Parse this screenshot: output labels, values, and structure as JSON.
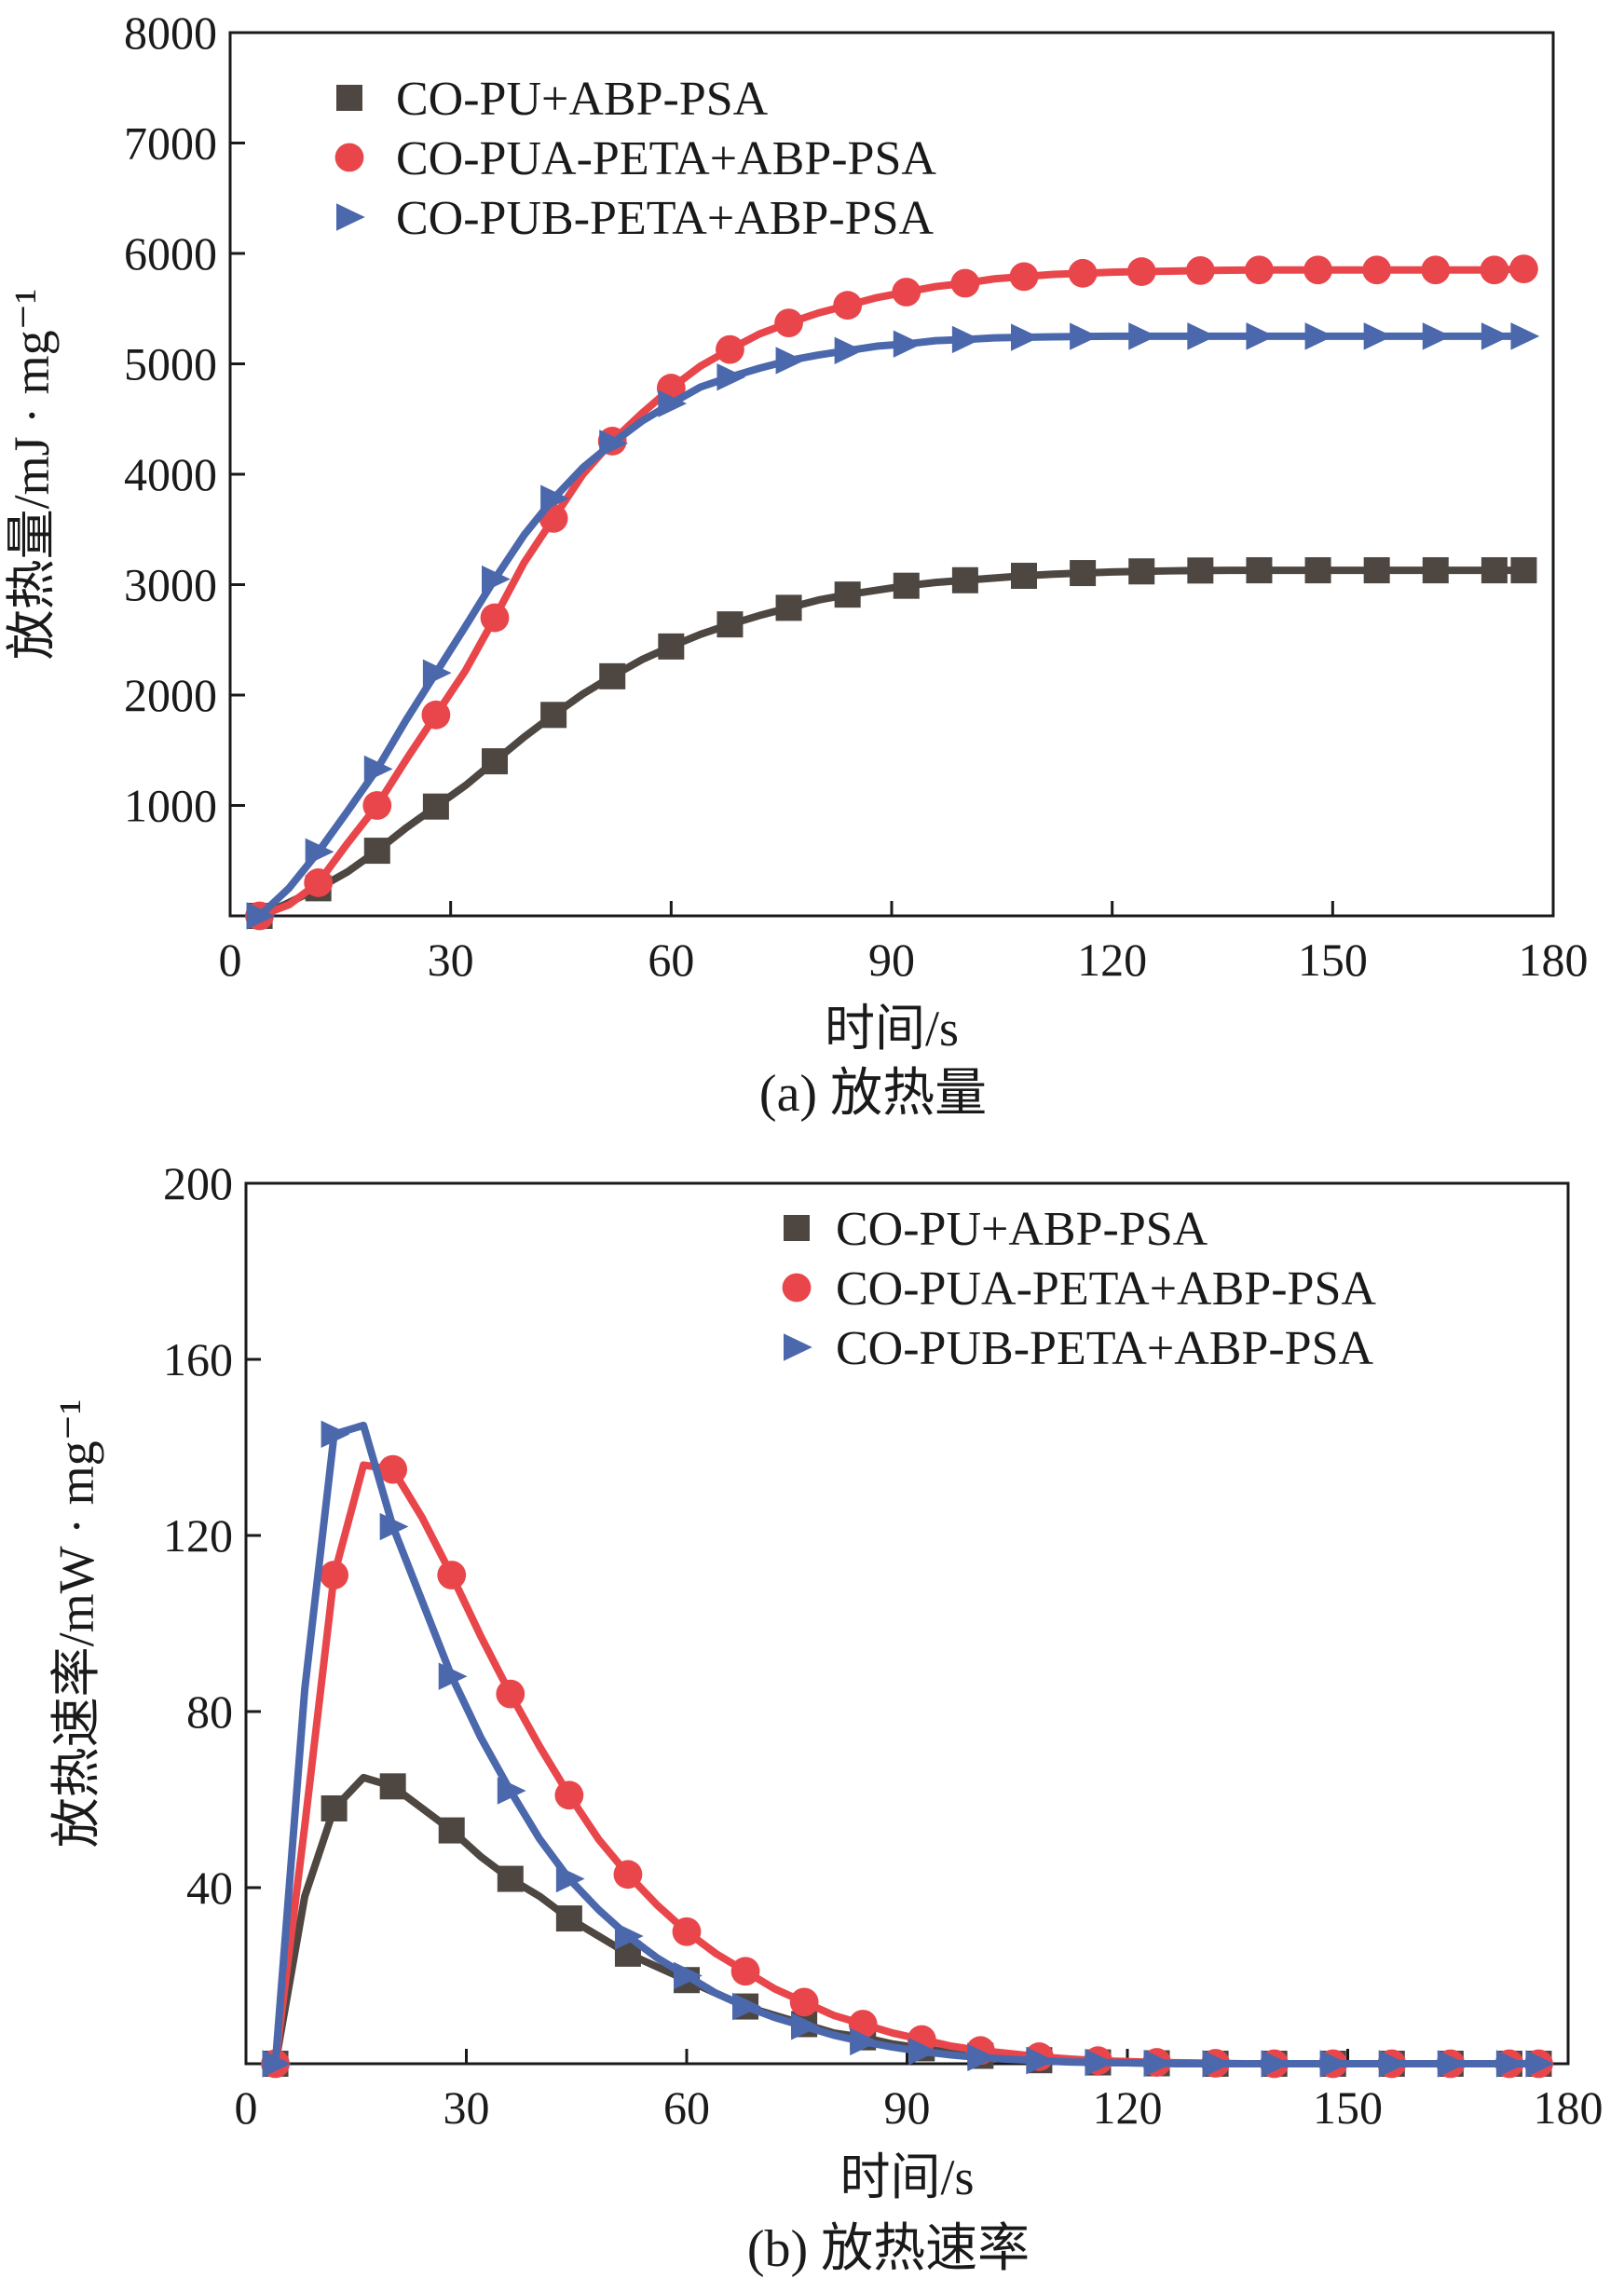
{
  "colors": {
    "co_pu": "#4d4641",
    "co_pua": "#e8464b",
    "co_pub": "#4b68ad",
    "axis": "#1a1a1a"
  },
  "chart_data": [
    {
      "type": "line",
      "caption": "(a) 放热量",
      "xlabel": "时间/s",
      "ylabel": "放热量/mJ · mg⁻¹",
      "xlim": [
        0,
        180
      ],
      "ylim": [
        0,
        8000
      ],
      "xticks": [
        0,
        30,
        60,
        90,
        120,
        150,
        180
      ],
      "yticks": [
        1000,
        2000,
        3000,
        4000,
        5000,
        6000,
        7000,
        8000
      ],
      "legend_position": "top-left",
      "x": [
        4,
        8,
        12,
        16,
        20,
        24,
        28,
        32,
        36,
        40,
        44,
        48,
        52,
        56,
        60,
        64,
        68,
        72,
        76,
        80,
        84,
        88,
        92,
        96,
        100,
        104,
        108,
        112,
        116,
        120,
        124,
        128,
        132,
        136,
        140,
        144,
        148,
        152,
        156,
        160,
        164,
        168,
        172,
        176
      ],
      "series": [
        {
          "name": "CO-PU+ABP-PSA",
          "color_key": "co_pu",
          "marker": "square",
          "marker_every": 2,
          "values": [
            0,
            120,
            250,
            400,
            590,
            800,
            990,
            1180,
            1400,
            1620,
            1820,
            2010,
            2170,
            2320,
            2440,
            2550,
            2640,
            2720,
            2790,
            2860,
            2910,
            2950,
            2990,
            3020,
            3040,
            3060,
            3080,
            3095,
            3105,
            3115,
            3120,
            3125,
            3128,
            3130,
            3130,
            3130,
            3130,
            3130,
            3130,
            3130,
            3130,
            3130,
            3130,
            3130
          ]
        },
        {
          "name": "CO-PUA-PETA+ABP-PSA",
          "color_key": "co_pua",
          "marker": "circle",
          "marker_every": 2,
          "values": [
            0,
            100,
            300,
            660,
            1000,
            1420,
            1820,
            2220,
            2700,
            3200,
            3600,
            4000,
            4300,
            4550,
            4780,
            4980,
            5130,
            5270,
            5370,
            5460,
            5530,
            5600,
            5650,
            5700,
            5730,
            5770,
            5790,
            5810,
            5820,
            5830,
            5835,
            5840,
            5845,
            5848,
            5850,
            5850,
            5850,
            5850,
            5850,
            5850,
            5850,
            5850,
            5850,
            5860
          ]
        },
        {
          "name": "CO-PUB-PETA+ABP-PSA",
          "color_key": "co_pub",
          "marker": "triangle-right",
          "marker_every": 2,
          "values": [
            0,
            250,
            580,
            950,
            1330,
            1780,
            2200,
            2620,
            3050,
            3450,
            3780,
            4060,
            4280,
            4480,
            4640,
            4790,
            4880,
            4960,
            5030,
            5080,
            5120,
            5160,
            5180,
            5210,
            5220,
            5235,
            5240,
            5245,
            5248,
            5250,
            5250,
            5250,
            5250,
            5250,
            5250,
            5250,
            5250,
            5250,
            5250,
            5250,
            5250,
            5250,
            5250,
            5250
          ]
        }
      ]
    },
    {
      "type": "line",
      "caption": "(b) 放热速率",
      "xlabel": "时间/s",
      "ylabel": "放热速率/mW · mg⁻¹",
      "xlim": [
        0,
        180
      ],
      "ylim": [
        0,
        200
      ],
      "xticks": [
        0,
        30,
        60,
        90,
        120,
        150,
        180
      ],
      "yticks": [
        40,
        80,
        120,
        160,
        200
      ],
      "legend_position": "top-right",
      "x": [
        4,
        8,
        12,
        16,
        20,
        24,
        28,
        32,
        36,
        40,
        44,
        48,
        52,
        56,
        60,
        64,
        68,
        72,
        76,
        80,
        84,
        88,
        92,
        96,
        100,
        104,
        108,
        112,
        116,
        120,
        124,
        128,
        132,
        136,
        140,
        144,
        148,
        152,
        156,
        160,
        164,
        168,
        172,
        176
      ],
      "series": [
        {
          "name": "CO-PU+ABP-PSA",
          "color_key": "co_pu",
          "marker": "square",
          "marker_every": 2,
          "values": [
            0,
            38,
            58,
            65,
            63,
            58,
            53,
            47,
            42,
            38,
            33,
            29,
            25,
            22,
            19,
            16,
            13,
            11,
            9,
            7,
            6,
            4.5,
            3.5,
            2.5,
            1.8,
            1.2,
            0.8,
            0.5,
            0.3,
            0.2,
            0.1,
            0,
            0,
            0,
            0,
            0,
            0,
            0,
            0,
            0,
            0,
            0,
            0,
            0
          ]
        },
        {
          "name": "CO-PUA-PETA+ABP-PSA",
          "color_key": "co_pua",
          "marker": "circle",
          "marker_every": 2,
          "values": [
            0,
            54,
            111,
            136,
            135,
            124,
            111,
            97,
            84,
            72,
            61,
            51,
            43,
            36,
            30,
            25,
            21,
            17,
            14,
            11,
            9,
            7,
            5.5,
            4,
            3,
            2.3,
            1.6,
            1.1,
            0.7,
            0.5,
            0.3,
            0.2,
            0.1,
            0,
            0,
            0,
            0,
            0,
            0,
            0,
            0,
            0,
            0,
            0
          ]
        },
        {
          "name": "CO-PUB-PETA+ABP-PSA",
          "color_key": "co_pub",
          "marker": "triangle-right",
          "marker_every": 2,
          "values": [
            0,
            85,
            143,
            145,
            122,
            105,
            88,
            74,
            62,
            51,
            42,
            35,
            29,
            24,
            20,
            16,
            13,
            10.5,
            8.5,
            6.5,
            5,
            3.8,
            2.8,
            2,
            1.4,
            1,
            0.7,
            0.4,
            0.3,
            0.2,
            0.1,
            0,
            0,
            0,
            0,
            0,
            0,
            0,
            0,
            0,
            0,
            0,
            0,
            0
          ]
        }
      ]
    }
  ]
}
